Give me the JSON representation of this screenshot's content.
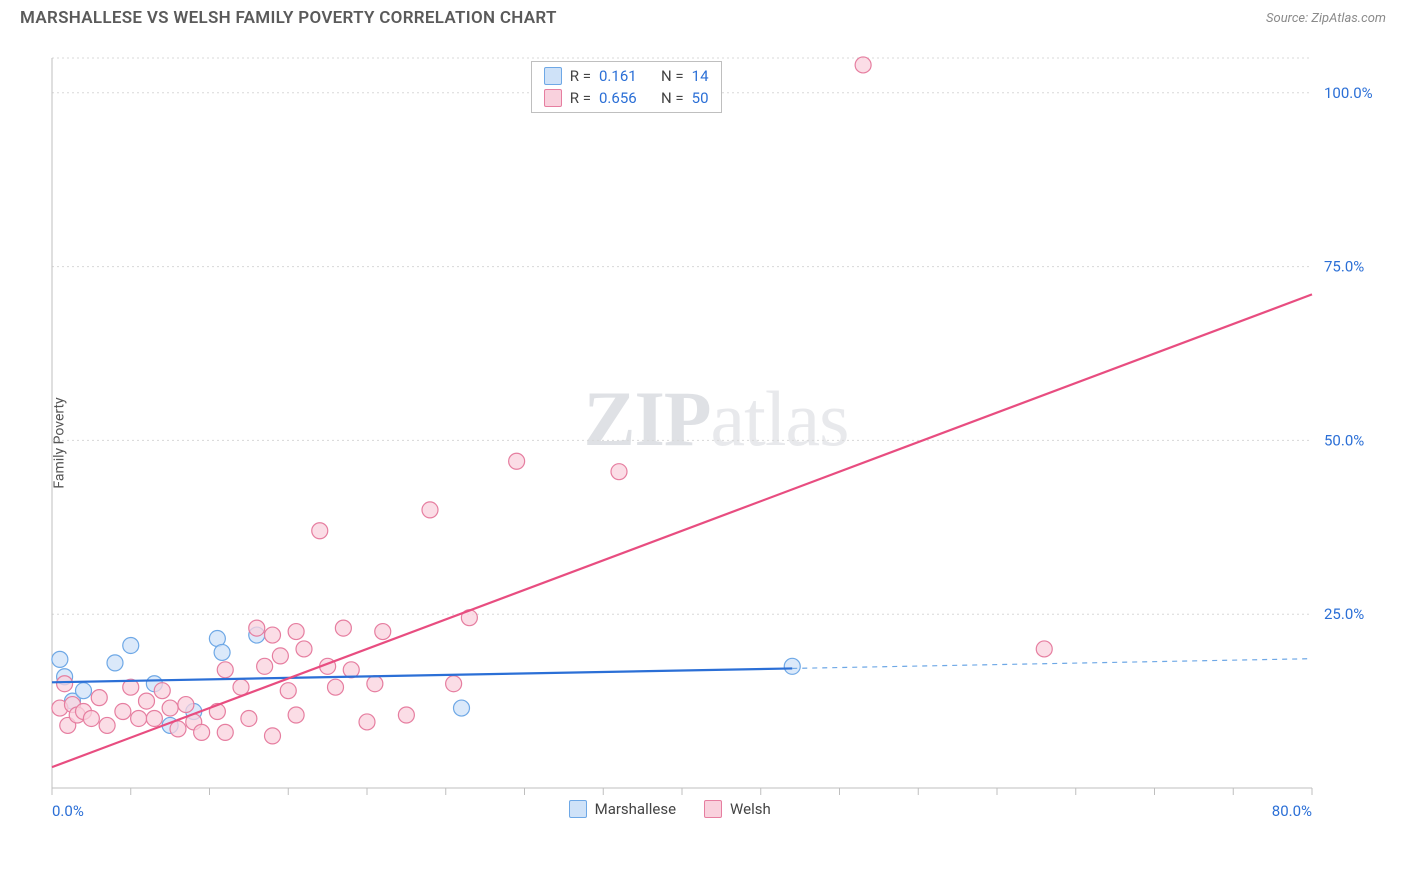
{
  "header": {
    "title": "MARSHALLESE VS WELSH FAMILY POVERTY CORRELATION CHART",
    "source": "Source: ZipAtlas.com"
  },
  "watermark": {
    "zip": "ZIP",
    "atlas": "atlas"
  },
  "ylabel": "Family Poverty",
  "chart": {
    "type": "scatter",
    "background_color": "#ffffff",
    "grid_color": "#d8d8d8",
    "grid_dash": "2,3",
    "axis_color": "#bfbfbf",
    "xlim": [
      0,
      80
    ],
    "ylim": [
      0,
      105
    ],
    "xticks": [
      0,
      5,
      10,
      15,
      20,
      25,
      30,
      35,
      40,
      45,
      50,
      55,
      60,
      65,
      70,
      75,
      80
    ],
    "xtick_labels": {
      "0": "0.0%",
      "80": "80.0%"
    },
    "ygrid": [
      25,
      50,
      75,
      100,
      105
    ],
    "ytick_labels": {
      "25": "25.0%",
      "50": "50.0%",
      "75": "75.0%",
      "100": "100.0%"
    },
    "tick_label_color": "#2b6fd6",
    "tick_label_fontsize": 15,
    "series": [
      {
        "name": "Marshallese",
        "fill": "#cfe2f8",
        "stroke": "#6ea8e6",
        "stroke_width": 1.2,
        "marker_r": 8,
        "R": "0.161",
        "N": "14",
        "trend": {
          "solid_color": "#2b6fd6",
          "solid_width": 2.2,
          "dash_color": "#6ea8e6",
          "dash_width": 1.2,
          "dash_pattern": "5,5",
          "x1": 0,
          "y1": 15.2,
          "x_split": 47,
          "y_split": 17.2,
          "x2": 80,
          "y2": 18.6
        },
        "points": [
          {
            "x": 0.5,
            "y": 18.5
          },
          {
            "x": 0.8,
            "y": 16.0
          },
          {
            "x": 1.3,
            "y": 12.5
          },
          {
            "x": 2.0,
            "y": 14.0
          },
          {
            "x": 4.0,
            "y": 18.0
          },
          {
            "x": 5.0,
            "y": 20.5
          },
          {
            "x": 6.5,
            "y": 15.0
          },
          {
            "x": 7.5,
            "y": 9.0
          },
          {
            "x": 9.0,
            "y": 11.0
          },
          {
            "x": 10.5,
            "y": 21.5
          },
          {
            "x": 10.8,
            "y": 19.5
          },
          {
            "x": 26.0,
            "y": 11.5
          },
          {
            "x": 13.0,
            "y": 22.0
          },
          {
            "x": 47.0,
            "y": 17.5
          }
        ]
      },
      {
        "name": "Welsh",
        "fill": "#f9d1dd",
        "stroke": "#e67ea0",
        "stroke_width": 1.2,
        "marker_r": 8,
        "R": "0.656",
        "N": "50",
        "trend": {
          "solid_color": "#e84d80",
          "solid_width": 2.2,
          "x1": 0,
          "y1": 3.0,
          "x2": 80,
          "y2": 71.0
        },
        "points": [
          {
            "x": 0.5,
            "y": 11.5
          },
          {
            "x": 0.8,
            "y": 15.0
          },
          {
            "x": 1.0,
            "y": 9.0
          },
          {
            "x": 1.3,
            "y": 12.0
          },
          {
            "x": 1.6,
            "y": 10.5
          },
          {
            "x": 2.0,
            "y": 11.0
          },
          {
            "x": 2.5,
            "y": 10.0
          },
          {
            "x": 3.0,
            "y": 13.0
          },
          {
            "x": 3.5,
            "y": 9.0
          },
          {
            "x": 4.5,
            "y": 11.0
          },
          {
            "x": 5.0,
            "y": 14.5
          },
          {
            "x": 5.5,
            "y": 10.0
          },
          {
            "x": 6.0,
            "y": 12.5
          },
          {
            "x": 6.5,
            "y": 10.0
          },
          {
            "x": 7.0,
            "y": 14.0
          },
          {
            "x": 7.5,
            "y": 11.5
          },
          {
            "x": 8.0,
            "y": 8.5
          },
          {
            "x": 8.5,
            "y": 12.0
          },
          {
            "x": 9.0,
            "y": 9.5
          },
          {
            "x": 9.5,
            "y": 8.0
          },
          {
            "x": 10.5,
            "y": 11.0
          },
          {
            "x": 11.0,
            "y": 8.0
          },
          {
            "x": 11.0,
            "y": 17.0
          },
          {
            "x": 12.0,
            "y": 14.5
          },
          {
            "x": 12.5,
            "y": 10.0
          },
          {
            "x": 13.0,
            "y": 23.0
          },
          {
            "x": 13.5,
            "y": 17.5
          },
          {
            "x": 14.0,
            "y": 22.0
          },
          {
            "x": 14.5,
            "y": 19.0
          },
          {
            "x": 15.0,
            "y": 14.0
          },
          {
            "x": 15.5,
            "y": 22.5
          },
          {
            "x": 16.0,
            "y": 20.0
          },
          {
            "x": 15.5,
            "y": 10.5
          },
          {
            "x": 17.0,
            "y": 37.0
          },
          {
            "x": 17.5,
            "y": 17.5
          },
          {
            "x": 18.0,
            "y": 14.5
          },
          {
            "x": 18.5,
            "y": 23.0
          },
          {
            "x": 19.0,
            "y": 17.0
          },
          {
            "x": 20.0,
            "y": 9.5
          },
          {
            "x": 20.5,
            "y": 15.0
          },
          {
            "x": 21.0,
            "y": 22.5
          },
          {
            "x": 22.5,
            "y": 10.5
          },
          {
            "x": 24.0,
            "y": 40.0
          },
          {
            "x": 25.5,
            "y": 15.0
          },
          {
            "x": 26.5,
            "y": 24.5
          },
          {
            "x": 29.5,
            "y": 47.0
          },
          {
            "x": 36.0,
            "y": 45.5
          },
          {
            "x": 51.5,
            "y": 104.0
          },
          {
            "x": 63.0,
            "y": 20.0
          },
          {
            "x": 14.0,
            "y": 7.5
          }
        ]
      }
    ]
  },
  "legend_bottom": [
    {
      "label": "Marshallese",
      "fill": "#cfe2f8",
      "stroke": "#6ea8e6"
    },
    {
      "label": "Welsh",
      "fill": "#f9d1dd",
      "stroke": "#e67ea0"
    }
  ]
}
